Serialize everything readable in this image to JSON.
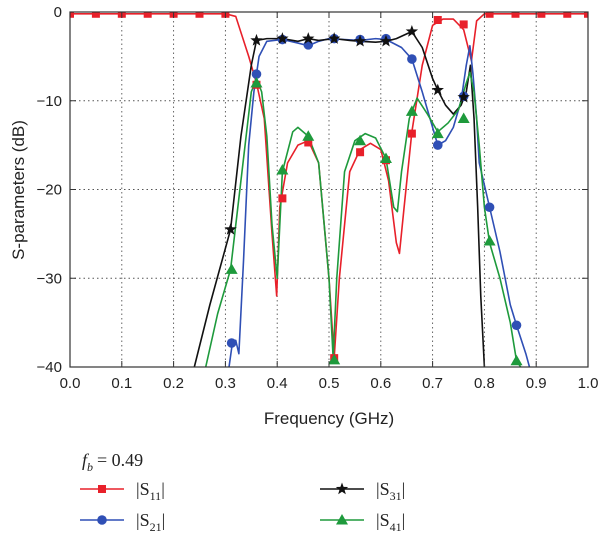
{
  "chart_data": {
    "type": "line",
    "xlabel": "Frequency (GHz)",
    "ylabel": "S-parameters (dB)",
    "xlim": [
      0,
      1.0
    ],
    "ylim": [
      -40,
      0
    ],
    "xticks": [
      "0.0",
      "0.1",
      "0.2",
      "0.3",
      "0.4",
      "0.5",
      "0.6",
      "0.7",
      "0.8",
      "0.9",
      "1.0"
    ],
    "yticks": [
      "0",
      "−10",
      "−20",
      "−30",
      "−40"
    ],
    "grid": "dotted",
    "annotation": {
      "symbol": "f",
      "subscript": "b",
      "value": "= 0.49"
    },
    "legend_position": "bottom",
    "series": [
      {
        "name_main": "|S",
        "name_sub": "11",
        "name_end": "|",
        "color": "#e8202a",
        "marker": "square",
        "points": [
          [
            0.0,
            -0.2
          ],
          [
            0.3,
            -0.2
          ],
          [
            0.32,
            -0.5
          ],
          [
            0.345,
            -5
          ],
          [
            0.36,
            -8
          ],
          [
            0.375,
            -12
          ],
          [
            0.39,
            -25
          ],
          [
            0.399,
            -32
          ],
          [
            0.405,
            -22
          ],
          [
            0.42,
            -17
          ],
          [
            0.44,
            -15
          ],
          [
            0.46,
            -14.5
          ],
          [
            0.48,
            -17
          ],
          [
            0.5,
            -30
          ],
          [
            0.51,
            -39
          ],
          [
            0.52,
            -30
          ],
          [
            0.54,
            -18
          ],
          [
            0.56,
            -15.5
          ],
          [
            0.58,
            -14.8
          ],
          [
            0.6,
            -15.5
          ],
          [
            0.615,
            -19
          ],
          [
            0.63,
            -26
          ],
          [
            0.636,
            -27.2
          ],
          [
            0.645,
            -22
          ],
          [
            0.66,
            -13.5
          ],
          [
            0.68,
            -6
          ],
          [
            0.7,
            -1.5
          ],
          [
            0.72,
            -0.8
          ],
          [
            0.74,
            -0.8
          ],
          [
            0.76,
            -2
          ],
          [
            0.775,
            -5.5
          ],
          [
            0.785,
            -1
          ],
          [
            0.8,
            -0.2
          ],
          [
            1.0,
            -0.2
          ]
        ],
        "markers": [
          [
            0.0,
            -0.2
          ],
          [
            0.05,
            -0.2
          ],
          [
            0.1,
            -0.2
          ],
          [
            0.15,
            -0.2
          ],
          [
            0.2,
            -0.2
          ],
          [
            0.25,
            -0.2
          ],
          [
            0.3,
            -0.2
          ],
          [
            0.36,
            -8.2
          ],
          [
            0.41,
            -21
          ],
          [
            0.46,
            -14.7
          ],
          [
            0.51,
            -39
          ],
          [
            0.56,
            -15.8
          ],
          [
            0.61,
            -16.7
          ],
          [
            0.66,
            -13.7
          ],
          [
            0.71,
            -0.9
          ],
          [
            0.76,
            -1.4
          ],
          [
            0.81,
            -0.2
          ],
          [
            0.86,
            -0.2
          ],
          [
            0.91,
            -0.2
          ],
          [
            0.96,
            -0.2
          ],
          [
            1.0,
            -0.2
          ]
        ]
      },
      {
        "name_main": "|S",
        "name_sub": "21",
        "name_end": "|",
        "color": "#2f4fb5",
        "marker": "circle",
        "points": [
          [
            0.307,
            -40
          ],
          [
            0.313,
            -37.5
          ],
          [
            0.32,
            -37
          ],
          [
            0.326,
            -38.5
          ],
          [
            0.335,
            -28
          ],
          [
            0.345,
            -15
          ],
          [
            0.355,
            -9
          ],
          [
            0.365,
            -5
          ],
          [
            0.38,
            -3.3
          ],
          [
            0.41,
            -3.1
          ],
          [
            0.44,
            -3.5
          ],
          [
            0.46,
            -3.8
          ],
          [
            0.48,
            -3.3
          ],
          [
            0.5,
            -3
          ],
          [
            0.53,
            -3.1
          ],
          [
            0.56,
            -3.2
          ],
          [
            0.59,
            -3
          ],
          [
            0.61,
            -3.1
          ],
          [
            0.64,
            -4
          ],
          [
            0.66,
            -5.3
          ],
          [
            0.68,
            -9
          ],
          [
            0.7,
            -13
          ],
          [
            0.71,
            -15
          ],
          [
            0.725,
            -14.5
          ],
          [
            0.74,
            -13
          ],
          [
            0.755,
            -10
          ],
          [
            0.765,
            -6
          ],
          [
            0.772,
            -3.8
          ],
          [
            0.778,
            -7
          ],
          [
            0.785,
            -12
          ],
          [
            0.79,
            -17
          ],
          [
            0.81,
            -22
          ],
          [
            0.83,
            -27
          ],
          [
            0.85,
            -33
          ],
          [
            0.862,
            -35.3
          ],
          [
            0.88,
            -38.5
          ],
          [
            0.887,
            -40
          ]
        ],
        "markers": [
          [
            0.312,
            -37.3
          ],
          [
            0.36,
            -7
          ],
          [
            0.41,
            -3.1
          ],
          [
            0.46,
            -3.7
          ],
          [
            0.51,
            -3
          ],
          [
            0.56,
            -3.1
          ],
          [
            0.61,
            -3
          ],
          [
            0.66,
            -5.3
          ],
          [
            0.71,
            -15
          ],
          [
            0.76,
            -9.5
          ],
          [
            0.81,
            -22
          ],
          [
            0.862,
            -35.3
          ]
        ]
      },
      {
        "name_main": "|S",
        "name_sub": "31",
        "name_end": "|",
        "color": "#111111",
        "marker": "star",
        "points": [
          [
            0.24,
            -40
          ],
          [
            0.27,
            -33
          ],
          [
            0.31,
            -24.5
          ],
          [
            0.33,
            -14
          ],
          [
            0.35,
            -6
          ],
          [
            0.36,
            -3.2
          ],
          [
            0.38,
            -3
          ],
          [
            0.41,
            -3
          ],
          [
            0.44,
            -3.3
          ],
          [
            0.46,
            -3
          ],
          [
            0.48,
            -3.2
          ],
          [
            0.51,
            -3
          ],
          [
            0.54,
            -3.2
          ],
          [
            0.56,
            -3.3
          ],
          [
            0.59,
            -3.4
          ],
          [
            0.61,
            -3.3
          ],
          [
            0.63,
            -3
          ],
          [
            0.66,
            -2.2
          ],
          [
            0.68,
            -4
          ],
          [
            0.7,
            -7.5
          ],
          [
            0.71,
            -8.8
          ],
          [
            0.725,
            -10.5
          ],
          [
            0.74,
            -11.5
          ],
          [
            0.755,
            -10.5
          ],
          [
            0.765,
            -9
          ],
          [
            0.773,
            -6
          ],
          [
            0.78,
            -12
          ],
          [
            0.787,
            -22
          ],
          [
            0.793,
            -32
          ],
          [
            0.8,
            -40
          ]
        ],
        "markers": [
          [
            0.31,
            -24.5
          ],
          [
            0.36,
            -3.2
          ],
          [
            0.41,
            -3
          ],
          [
            0.46,
            -3
          ],
          [
            0.51,
            -3
          ],
          [
            0.56,
            -3.3
          ],
          [
            0.61,
            -3.3
          ],
          [
            0.66,
            -2.2
          ],
          [
            0.71,
            -8.8
          ],
          [
            0.76,
            -9.6
          ]
        ]
      },
      {
        "name_main": "|S",
        "name_sub": "41",
        "name_end": "|",
        "color": "#1e9a3c",
        "marker": "triangle",
        "points": [
          [
            0.262,
            -40
          ],
          [
            0.285,
            -34
          ],
          [
            0.31,
            -29
          ],
          [
            0.33,
            -19
          ],
          [
            0.35,
            -9
          ],
          [
            0.36,
            -7.5
          ],
          [
            0.37,
            -9
          ],
          [
            0.38,
            -14
          ],
          [
            0.39,
            -24
          ],
          [
            0.4,
            -30
          ],
          [
            0.41,
            -18
          ],
          [
            0.43,
            -13.5
          ],
          [
            0.44,
            -13
          ],
          [
            0.46,
            -14
          ],
          [
            0.48,
            -17
          ],
          [
            0.5,
            -30
          ],
          [
            0.508,
            -39
          ],
          [
            0.515,
            -30
          ],
          [
            0.53,
            -18
          ],
          [
            0.55,
            -14.5
          ],
          [
            0.57,
            -13.7
          ],
          [
            0.59,
            -14.2
          ],
          [
            0.61,
            -16.5
          ],
          [
            0.625,
            -22
          ],
          [
            0.632,
            -22.5
          ],
          [
            0.64,
            -18
          ],
          [
            0.655,
            -12
          ],
          [
            0.67,
            -9.7
          ],
          [
            0.69,
            -11.5
          ],
          [
            0.71,
            -13.5
          ],
          [
            0.73,
            -12.5
          ],
          [
            0.75,
            -11
          ],
          [
            0.765,
            -8
          ],
          [
            0.772,
            -6.8
          ],
          [
            0.78,
            -9
          ],
          [
            0.79,
            -15
          ],
          [
            0.8,
            -22
          ],
          [
            0.81,
            -26
          ],
          [
            0.83,
            -30
          ],
          [
            0.85,
            -35
          ],
          [
            0.862,
            -39.3
          ],
          [
            0.87,
            -40
          ]
        ],
        "markers": [
          [
            0.312,
            -29
          ],
          [
            0.36,
            -8
          ],
          [
            0.41,
            -17.8
          ],
          [
            0.46,
            -14
          ],
          [
            0.51,
            -39.2
          ],
          [
            0.56,
            -14.5
          ],
          [
            0.61,
            -16.5
          ],
          [
            0.66,
            -11.2
          ],
          [
            0.71,
            -13.7
          ],
          [
            0.76,
            -12
          ],
          [
            0.81,
            -25.8
          ],
          [
            0.862,
            -39.3
          ]
        ]
      }
    ]
  }
}
